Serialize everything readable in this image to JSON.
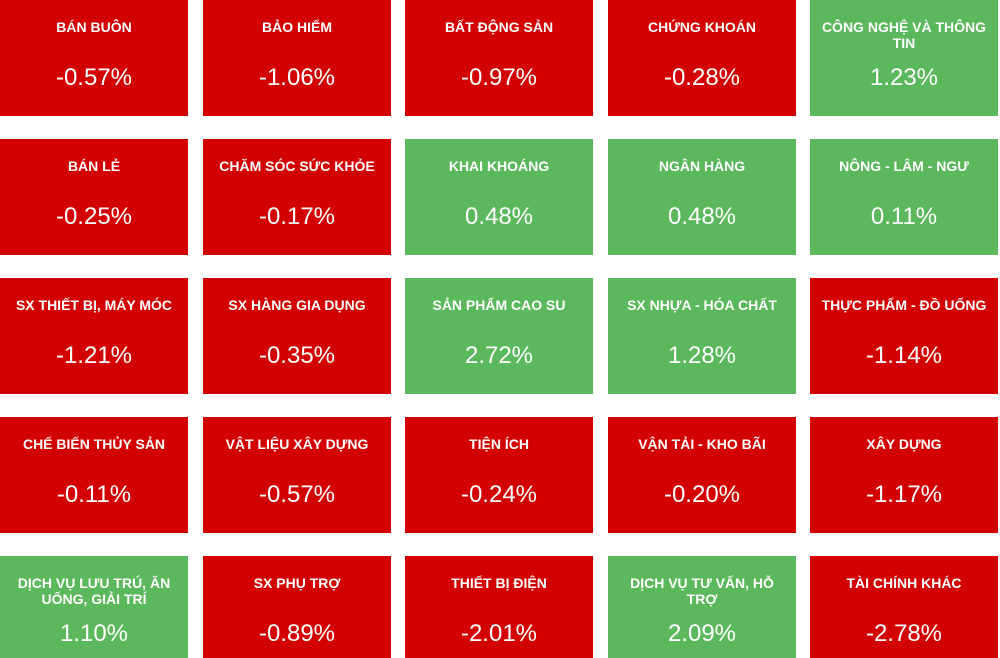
{
  "tiles": [
    {
      "name": "BÁN BUÔN",
      "change": "-0.57%",
      "color": "#d20000"
    },
    {
      "name": "BẢO HIỂM",
      "change": "-1.06%",
      "color": "#d20000"
    },
    {
      "name": "BẤT ĐỘNG SẢN",
      "change": "-0.97%",
      "color": "#d20000"
    },
    {
      "name": "CHỨNG KHOÁN",
      "change": "-0.28%",
      "color": "#d20000"
    },
    {
      "name": "CÔNG NGHỆ VÀ THÔNG TIN",
      "change": "1.23%",
      "color": "#5cb85c"
    },
    {
      "name": "BÁN LẺ",
      "change": "-0.25%",
      "color": "#d20000"
    },
    {
      "name": "CHĂM SÓC SỨC KHỎE",
      "change": "-0.17%",
      "color": "#d20000"
    },
    {
      "name": "KHAI KHOÁNG",
      "change": "0.48%",
      "color": "#5cb85c"
    },
    {
      "name": "NGÂN HÀNG",
      "change": "0.48%",
      "color": "#5cb85c"
    },
    {
      "name": "NÔNG - LÂM - NGƯ",
      "change": "0.11%",
      "color": "#5cb85c"
    },
    {
      "name": "SX THIẾT BỊ, MÁY MÓC",
      "change": "-1.21%",
      "color": "#d20000"
    },
    {
      "name": "SX HÀNG GIA DỤNG",
      "change": "-0.35%",
      "color": "#d20000"
    },
    {
      "name": "SẢN PHẨM CAO SU",
      "change": "2.72%",
      "color": "#5cb85c"
    },
    {
      "name": "SX NHỰA - HÓA CHẤT",
      "change": "1.28%",
      "color": "#5cb85c"
    },
    {
      "name": "THỰC PHẨM - ĐỒ UỐNG",
      "change": "-1.14%",
      "color": "#d20000"
    },
    {
      "name": "CHẾ BIẾN THỦY SẢN",
      "change": "-0.11%",
      "color": "#d20000"
    },
    {
      "name": "VẬT LIỆU XÂY DỰNG",
      "change": "-0.57%",
      "color": "#d20000"
    },
    {
      "name": "TIỆN ÍCH",
      "change": "-0.24%",
      "color": "#d20000"
    },
    {
      "name": "VẬN TẢI - KHO BÃI",
      "change": "-0.20%",
      "color": "#d20000"
    },
    {
      "name": "XÂY DỰNG",
      "change": "-1.17%",
      "color": "#d20000"
    },
    {
      "name": "DỊCH VỤ LƯU TRÚ, ĂN UỐNG, GIẢI TRÍ",
      "change": "1.10%",
      "color": "#5cb85c"
    },
    {
      "name": "SX PHỤ TRỢ",
      "change": "-0.89%",
      "color": "#d20000"
    },
    {
      "name": "THIẾT BỊ ĐIỆN",
      "change": "-2.01%",
      "color": "#d20000"
    },
    {
      "name": "DỊCH VỤ TƯ VẤN, HỖ TRỢ",
      "change": "2.09%",
      "color": "#5cb85c"
    },
    {
      "name": "TÀI CHÍNH KHÁC",
      "change": "-2.78%",
      "color": "#d20000"
    }
  ]
}
